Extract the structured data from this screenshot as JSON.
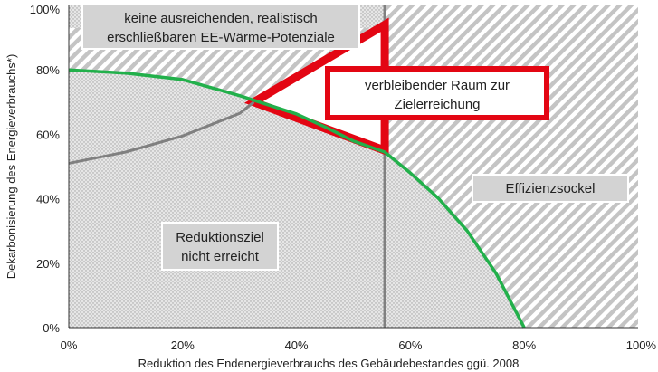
{
  "chart_data": {
    "type": "area",
    "xlabel": "Reduktion des Endenergieverbrauchs des Gebäudebestandes ggü. 2008",
    "ylabel": "Dekarbonisierung des Energieverbrauchs*)",
    "xlim": [
      0,
      100
    ],
    "ylim": [
      0,
      100
    ],
    "x_ticks": [
      "0%",
      "20%",
      "40%",
      "60%",
      "80%",
      "100%"
    ],
    "y_ticks": [
      "0%",
      "20%",
      "40%",
      "60%",
      "80%",
      "100%"
    ],
    "grid": false,
    "vertical_line_x": 55.5,
    "top_region_floor_y": 93,
    "series": [
      {
        "color": "#22b04b",
        "x": [
          0,
          10,
          20,
          30,
          40,
          45,
          50,
          55.5,
          60,
          65,
          70,
          75,
          80
        ],
        "y": [
          80,
          79,
          77,
          72,
          66.3,
          62.3,
          57.9,
          54.5,
          48,
          40,
          30,
          17,
          0
        ]
      },
      {
        "color": "#808080",
        "x": [
          0,
          10,
          20,
          30,
          32.5
        ],
        "y": [
          51,
          54.5,
          59.5,
          66.5,
          70
        ]
      }
    ],
    "triangle": [
      [
        32.5,
        70
      ],
      [
        55.5,
        94
      ],
      [
        55.5,
        55
      ]
    ],
    "annotations": [
      {
        "lines": [
          "keine ausreichenden, realistisch",
          "erschließbaren EE-Wärme-Potenziale"
        ]
      },
      {
        "lines": [
          "verbleibender Raum zur",
          "Zielerreichung"
        ]
      },
      {
        "lines": [
          "Effizienzsockel"
        ]
      },
      {
        "lines": [
          "Reduktionsziel",
          "nicht erreicht"
        ]
      }
    ],
    "colors": {
      "red": "#e30613",
      "green": "#22b04b",
      "grey_line": "#808080",
      "label_box": "#cccccc"
    }
  }
}
